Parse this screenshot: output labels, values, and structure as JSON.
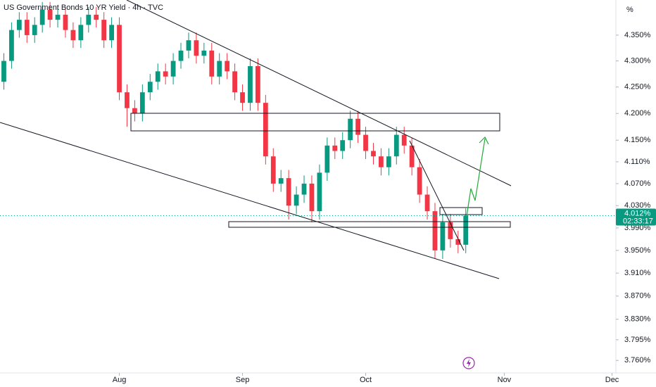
{
  "chart_data": {
    "type": "candlestick",
    "title": "US Government Bonds 10 YR Yield · 4h · TVC",
    "y_unit": "%",
    "log_scale": true,
    "up_color": "#089981",
    "down_color": "#f23645",
    "ylim": [
      3.739,
      4.419
    ],
    "yticks": [
      {
        "value": 4.35,
        "label": "4.350%"
      },
      {
        "value": 4.3,
        "label": "4.300%"
      },
      {
        "value": 4.25,
        "label": "4.250%"
      },
      {
        "value": 4.2,
        "label": "4.200%"
      },
      {
        "value": 4.15,
        "label": "4.150%"
      },
      {
        "value": 4.11,
        "label": "4.110%"
      },
      {
        "value": 4.07,
        "label": "4.070%"
      },
      {
        "value": 4.03,
        "label": "4.030%"
      },
      {
        "value": 3.99,
        "label": "3.990%"
      },
      {
        "value": 3.95,
        "label": "3.950%"
      },
      {
        "value": 3.91,
        "label": "3.910%"
      },
      {
        "value": 3.87,
        "label": "3.870%"
      },
      {
        "value": 3.83,
        "label": "3.830%"
      },
      {
        "value": 3.795,
        "label": "3.795%"
      },
      {
        "value": 3.76,
        "label": "3.760%"
      }
    ],
    "xlim": [
      -0.5,
      79.5
    ],
    "xticks": [
      {
        "value": 15,
        "label": "Aug"
      },
      {
        "value": 31,
        "label": "Sep"
      },
      {
        "value": 47,
        "label": "Oct"
      },
      {
        "value": 65,
        "label": "Nov"
      },
      {
        "value": 79,
        "label": "Dec"
      }
    ],
    "last_price": {
      "value": 4.012,
      "label": "4.012%"
    },
    "countdown": "02:33:17",
    "open": [
      4.26,
      4.3,
      4.36,
      4.38,
      4.35,
      4.37,
      4.4,
      4.38,
      4.39,
      4.36,
      4.34,
      4.37,
      4.39,
      4.38,
      4.34,
      4.37,
      4.24,
      4.21,
      4.2,
      4.24,
      4.26,
      4.28,
      4.27,
      4.3,
      4.32,
      4.34,
      4.31,
      4.32,
      4.27,
      4.3,
      4.28,
      4.24,
      4.22,
      4.29,
      4.22,
      4.12,
      4.07,
      4.08,
      4.03,
      4.05,
      4.07,
      4.02,
      4.09,
      4.14,
      4.13,
      4.15,
      4.19,
      4.16,
      4.13,
      4.12,
      4.1,
      4.12,
      4.16,
      4.14,
      4.1,
      4.05,
      4.02,
      3.95,
      4.0,
      3.97,
      3.96
    ],
    "high": [
      4.315,
      4.375,
      4.395,
      4.395,
      4.385,
      4.415,
      4.415,
      4.405,
      4.405,
      4.375,
      4.385,
      4.405,
      4.405,
      4.395,
      4.385,
      4.385,
      4.255,
      4.225,
      4.255,
      4.275,
      4.295,
      4.295,
      4.315,
      4.335,
      4.355,
      4.355,
      4.335,
      4.335,
      4.315,
      4.315,
      4.295,
      4.255,
      4.305,
      4.305,
      4.235,
      4.135,
      4.095,
      4.095,
      4.065,
      4.085,
      4.085,
      4.105,
      4.155,
      4.155,
      4.165,
      4.205,
      4.205,
      4.175,
      4.145,
      4.135,
      4.135,
      4.175,
      4.175,
      4.155,
      4.115,
      4.065,
      4.035,
      4.015,
      4.015,
      3.985,
      4.025
    ],
    "low": [
      4.245,
      4.285,
      4.345,
      4.335,
      4.335,
      4.355,
      4.365,
      4.365,
      4.345,
      4.325,
      4.325,
      4.355,
      4.365,
      4.325,
      4.325,
      4.225,
      4.175,
      4.185,
      4.185,
      4.225,
      4.245,
      4.255,
      4.255,
      4.285,
      4.305,
      4.295,
      4.295,
      4.255,
      4.255,
      4.265,
      4.225,
      4.205,
      4.205,
      4.205,
      4.105,
      4.055,
      4.055,
      4.005,
      4.015,
      4.035,
      4.0,
      4.005,
      4.075,
      4.115,
      4.115,
      4.135,
      4.145,
      4.115,
      4.105,
      4.085,
      4.085,
      4.105,
      4.125,
      4.085,
      4.035,
      4.005,
      3.935,
      3.935,
      3.955,
      3.945,
      3.945
    ],
    "close": [
      4.3,
      4.36,
      4.38,
      4.35,
      4.37,
      4.4,
      4.38,
      4.39,
      4.36,
      4.34,
      4.37,
      4.39,
      4.38,
      4.34,
      4.37,
      4.24,
      4.21,
      4.2,
      4.24,
      4.26,
      4.28,
      4.27,
      4.3,
      4.32,
      4.34,
      4.31,
      4.32,
      4.27,
      4.3,
      4.28,
      4.24,
      4.22,
      4.29,
      4.22,
      4.12,
      4.07,
      4.08,
      4.03,
      4.05,
      4.07,
      4.02,
      4.09,
      4.14,
      4.13,
      4.15,
      4.19,
      4.16,
      4.13,
      4.12,
      4.1,
      4.12,
      4.16,
      4.14,
      4.1,
      4.05,
      4.02,
      3.95,
      4.0,
      3.97,
      3.96,
      4.012
    ]
  }
}
